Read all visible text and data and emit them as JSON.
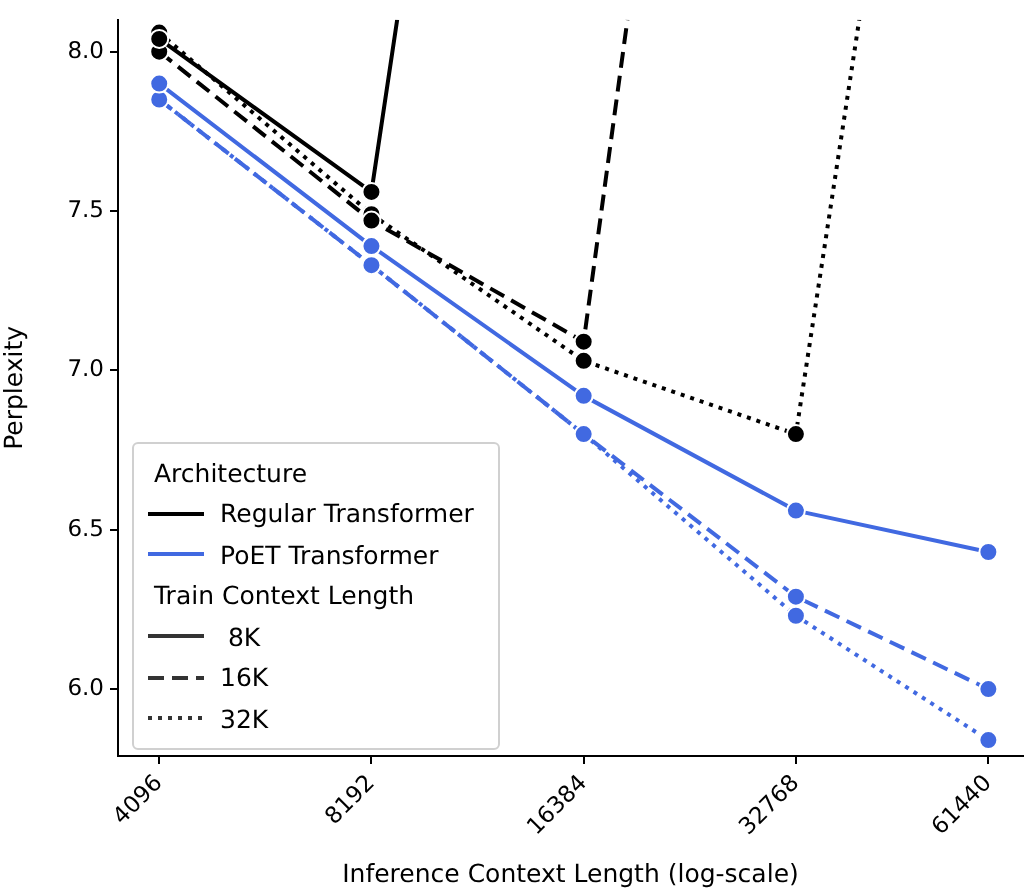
{
  "chart_data": {
    "type": "line",
    "xlabel": "Inference Context Length (log-scale)",
    "ylabel": "Perplexity",
    "log": "x",
    "x": [
      4096,
      8192,
      16384,
      32768,
      61440
    ],
    "xlim": [
      3580,
      68800
    ],
    "xticks": [
      4096,
      8192,
      16384,
      32768,
      61440
    ],
    "ylim": [
      5.79,
      8.1
    ],
    "yticks": [
      {
        "value": 6,
        "label": "6.0"
      },
      {
        "value": 6.5,
        "label": "6.5"
      },
      {
        "value": 7,
        "label": "7.0"
      },
      {
        "value": 7.5,
        "label": "7.5"
      },
      {
        "value": 8,
        "label": "8.0"
      }
    ],
    "grid": false,
    "marker": "circle",
    "legend": "bottom left",
    "legend_title": "Architecture",
    "series": [
      {
        "name": "Regular Transformer",
        "color": "#000000",
        "line_style": "solid",
        "x": [
          4096,
          8192,
          8910
        ],
        "values": [
          8.04,
          7.56,
          8.1
        ]
      },
      {
        "color": "#000000",
        "line_style": "dashed",
        "x": [
          4096,
          8192,
          16384,
          18900
        ],
        "values": [
          8.0,
          7.47,
          7.09,
          8.1
        ]
      },
      {
        "color": "#000000",
        "line_style": "dotted",
        "x": [
          4096,
          8192,
          16384,
          32768,
          40300
        ],
        "values": [
          8.06,
          7.49,
          7.03,
          6.8,
          8.1
        ]
      },
      {
        "name": "PoET Transformer",
        "color": "#4169e1",
        "line_style": "solid",
        "values": [
          7.9,
          7.39,
          6.92,
          6.56,
          6.43
        ]
      },
      {
        "color": "#4169e1",
        "line_style": "dashed",
        "values": [
          7.85,
          7.33,
          6.8,
          6.29,
          6.0
        ]
      },
      {
        "color": "#4169e1",
        "line_style": "dotted",
        "values": [
          7.85,
          7.33,
          6.8,
          6.23,
          5.84
        ]
      }
    ],
    "annotations": [
      "Train Context Length",
      " 8K",
      "16K",
      "32K"
    ]
  }
}
